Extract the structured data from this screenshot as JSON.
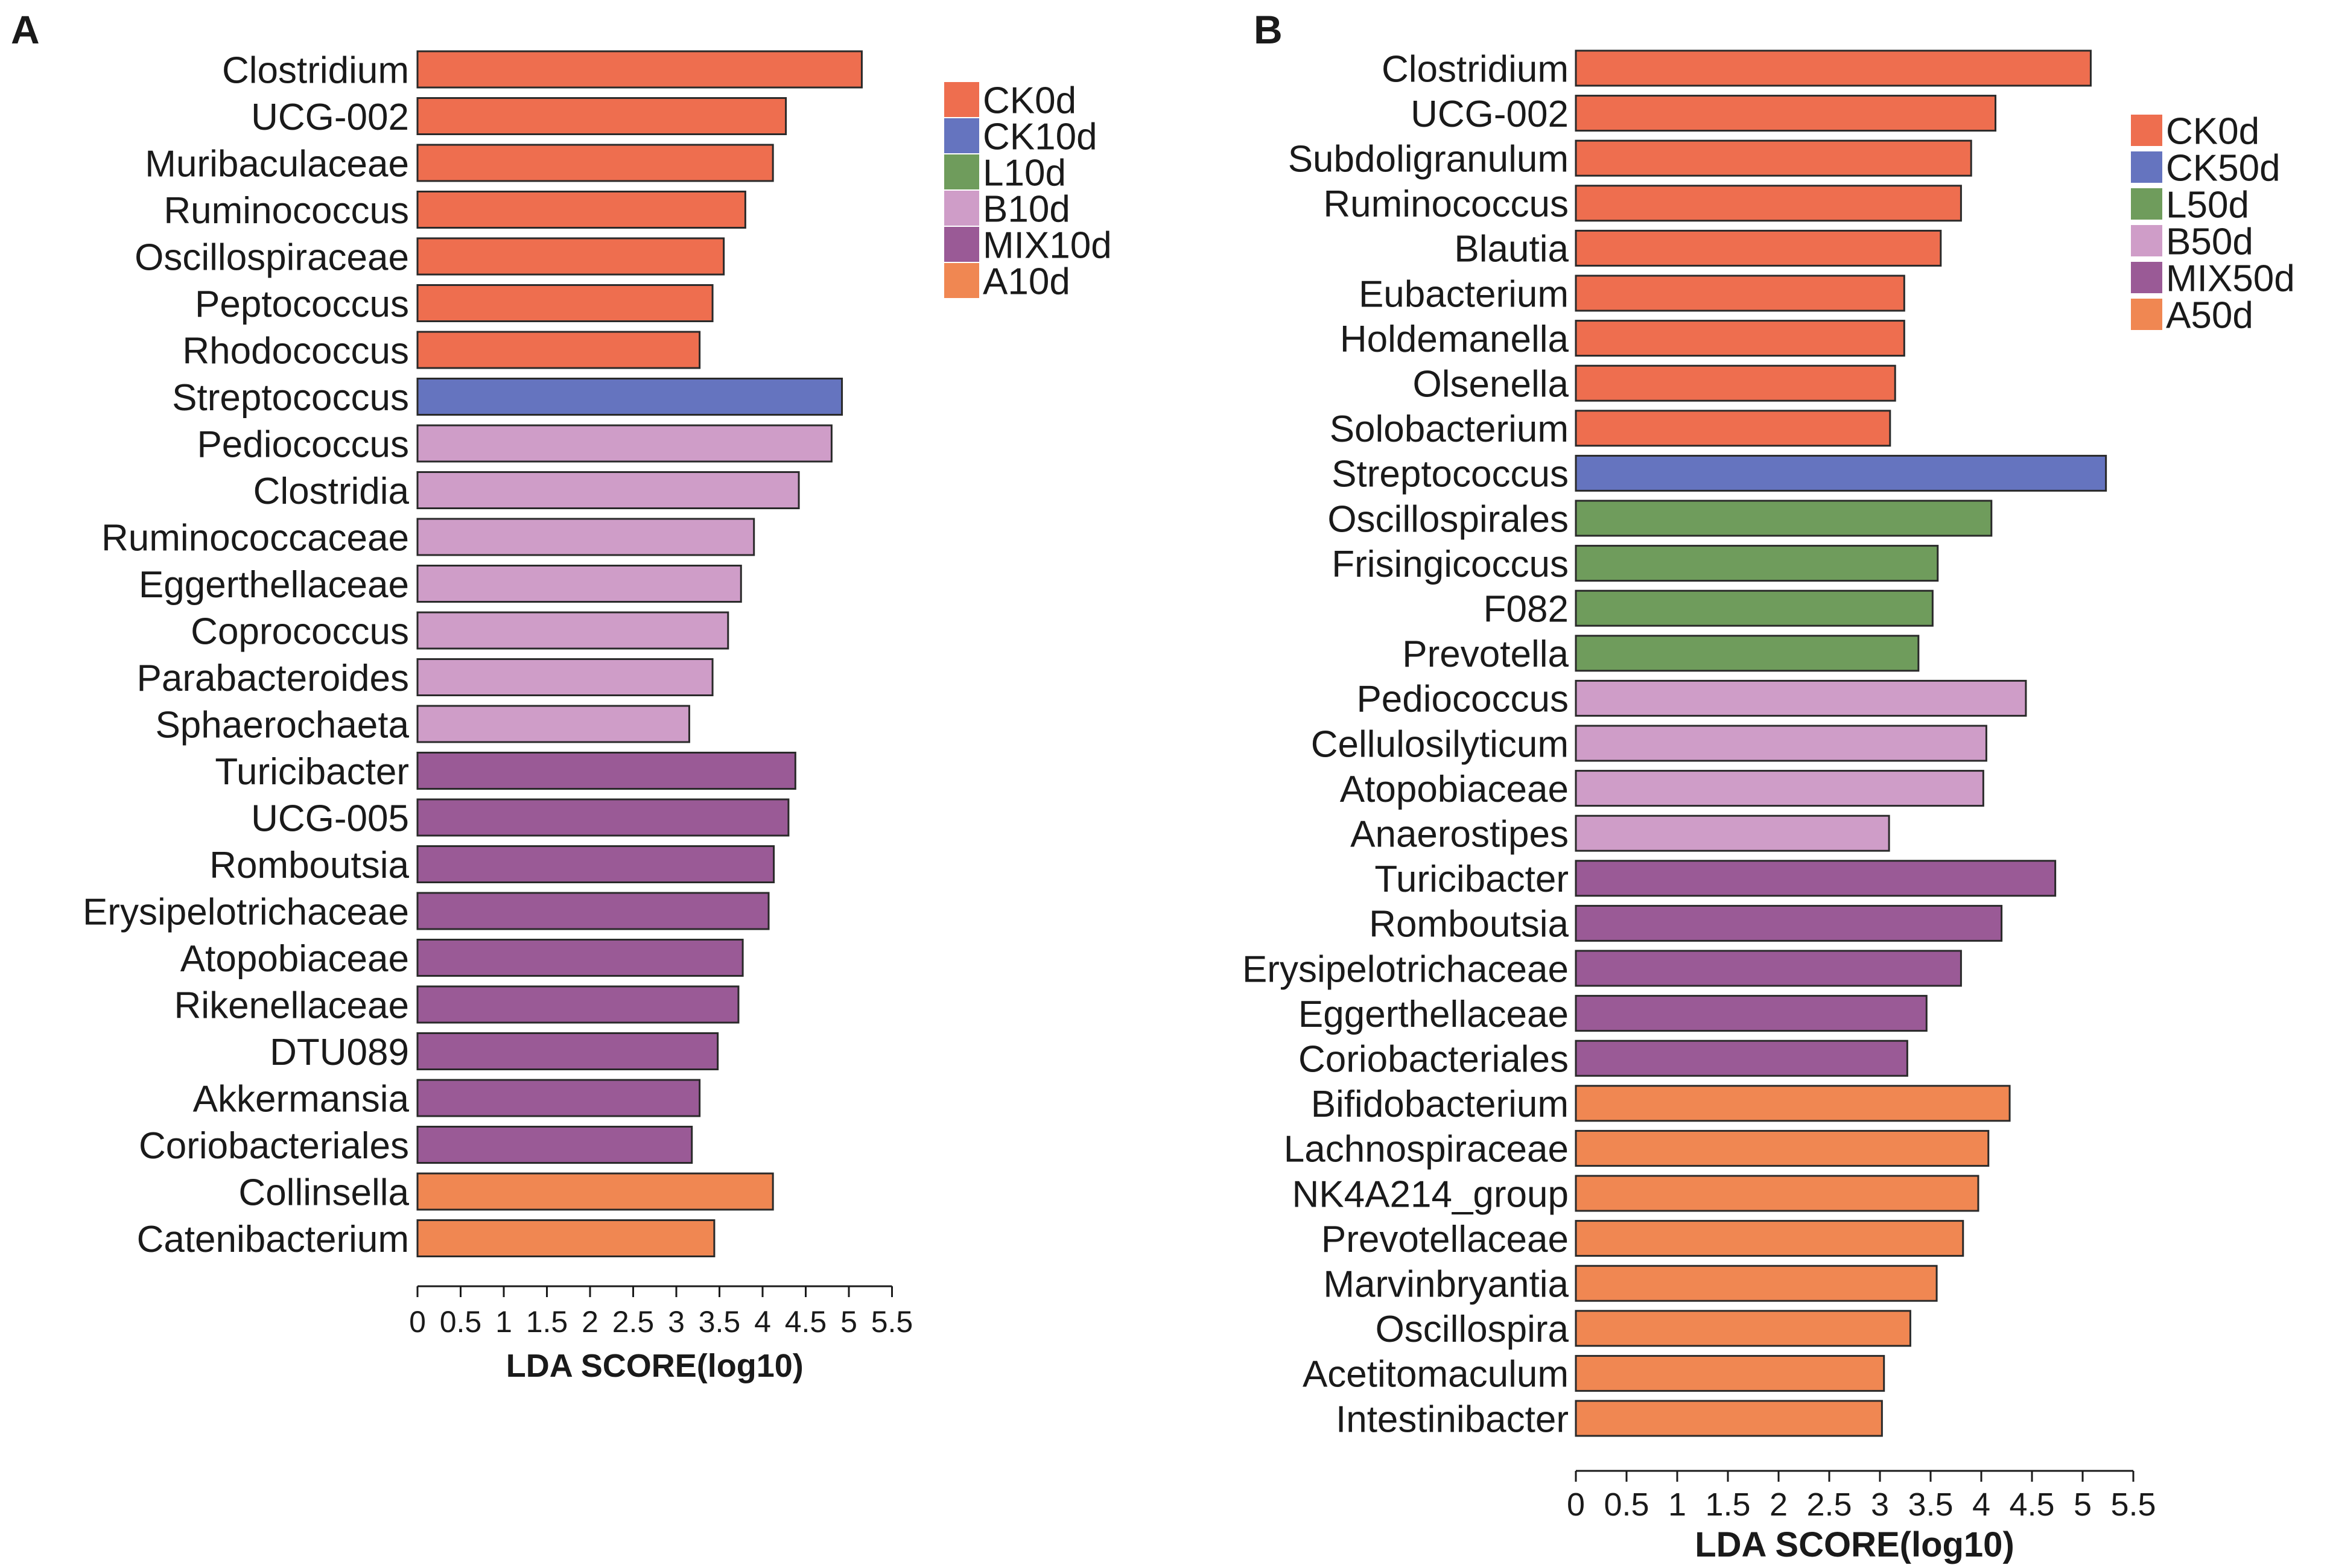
{
  "colors": {
    "CK": "#EE6E4F",
    "CKx": "#6574BF",
    "L": "#6F9C5C",
    "B": "#CF9DC8",
    "MIX": "#9A5A96",
    "A": "#F08752",
    "stroke": "#2a2a2a",
    "axis": "#1a1a1a"
  },
  "chart_data": [
    {
      "panel": "A",
      "type": "bar",
      "orientation": "horizontal",
      "xlabel": "LDA SCORE(log10)",
      "xlim": [
        0,
        5.5
      ],
      "xticks": [
        "0",
        "0.5",
        "1",
        "1.5",
        "2",
        "2.5",
        "3",
        "3.5",
        "4",
        "4.5",
        "5",
        "5.5"
      ],
      "legend_position": "top-right",
      "legend": [
        {
          "label": "CK0d",
          "color_key": "CK"
        },
        {
          "label": "CK10d",
          "color_key": "CKx"
        },
        {
          "label": "L10d",
          "color_key": "L"
        },
        {
          "label": "B10d",
          "color_key": "B"
        },
        {
          "label": "MIX10d",
          "color_key": "MIX"
        },
        {
          "label": "A10d",
          "color_key": "A"
        }
      ],
      "bars": [
        {
          "label": "Clostridium",
          "value": 5.15,
          "group": "CK"
        },
        {
          "label": "UCG-002",
          "value": 4.27,
          "group": "CK"
        },
        {
          "label": "Muribaculaceae",
          "value": 4.12,
          "group": "CK"
        },
        {
          "label": "Ruminococcus",
          "value": 3.8,
          "group": "CK"
        },
        {
          "label": "Oscillospiraceae",
          "value": 3.55,
          "group": "CK"
        },
        {
          "label": "Peptococcus",
          "value": 3.42,
          "group": "CK"
        },
        {
          "label": "Rhodococcus",
          "value": 3.27,
          "group": "CK"
        },
        {
          "label": "Streptococcus",
          "value": 4.92,
          "group": "CKx"
        },
        {
          "label": "Pediococcus",
          "value": 4.8,
          "group": "B"
        },
        {
          "label": "Clostridia",
          "value": 4.42,
          "group": "B"
        },
        {
          "label": "Ruminococcaceae",
          "value": 3.9,
          "group": "B"
        },
        {
          "label": "Eggerthellaceae",
          "value": 3.75,
          "group": "B"
        },
        {
          "label": "Coprococcus",
          "value": 3.6,
          "group": "B"
        },
        {
          "label": "Parabacteroides",
          "value": 3.42,
          "group": "B"
        },
        {
          "label": "Sphaerochaeta",
          "value": 3.15,
          "group": "B"
        },
        {
          "label": "Turicibacter",
          "value": 4.38,
          "group": "MIX"
        },
        {
          "label": "UCG-005",
          "value": 4.3,
          "group": "MIX"
        },
        {
          "label": "Romboutsia",
          "value": 4.13,
          "group": "MIX"
        },
        {
          "label": "Erysipelotrichaceae",
          "value": 4.07,
          "group": "MIX"
        },
        {
          "label": "Atopobiaceae",
          "value": 3.77,
          "group": "MIX"
        },
        {
          "label": "Rikenellaceae",
          "value": 3.72,
          "group": "MIX"
        },
        {
          "label": "DTU089",
          "value": 3.48,
          "group": "MIX"
        },
        {
          "label": "Akkermansia",
          "value": 3.27,
          "group": "MIX"
        },
        {
          "label": "Coriobacteriales",
          "value": 3.18,
          "group": "MIX"
        },
        {
          "label": "Collinsella",
          "value": 4.12,
          "group": "A"
        },
        {
          "label": "Catenibacterium",
          "value": 3.44,
          "group": "A"
        }
      ]
    },
    {
      "panel": "B",
      "type": "bar",
      "orientation": "horizontal",
      "xlabel": "LDA SCORE(log10)",
      "xlim": [
        0,
        5.5
      ],
      "xticks": [
        "0",
        "0.5",
        "1",
        "1.5",
        "2",
        "2.5",
        "3",
        "3.5",
        "4",
        "4.5",
        "5",
        "5.5"
      ],
      "legend_position": "top-right",
      "legend": [
        {
          "label": "CK0d",
          "color_key": "CK"
        },
        {
          "label": "CK50d",
          "color_key": "CKx"
        },
        {
          "label": "L50d",
          "color_key": "L"
        },
        {
          "label": "B50d",
          "color_key": "B"
        },
        {
          "label": "MIX50d",
          "color_key": "MIX"
        },
        {
          "label": "A50d",
          "color_key": "A"
        }
      ],
      "bars": [
        {
          "label": "Clostridium",
          "value": 5.08,
          "group": "CK"
        },
        {
          "label": "UCG-002",
          "value": 4.14,
          "group": "CK"
        },
        {
          "label": "Subdoligranulum",
          "value": 3.9,
          "group": "CK"
        },
        {
          "label": "Ruminococcus",
          "value": 3.8,
          "group": "CK"
        },
        {
          "label": "Blautia",
          "value": 3.6,
          "group": "CK"
        },
        {
          "label": "Eubacterium",
          "value": 3.24,
          "group": "CK"
        },
        {
          "label": "Holdemanella",
          "value": 3.24,
          "group": "CK"
        },
        {
          "label": "Olsenella",
          "value": 3.15,
          "group": "CK"
        },
        {
          "label": "Solobacterium",
          "value": 3.1,
          "group": "CK"
        },
        {
          "label": "Streptococcus",
          "value": 5.23,
          "group": "CKx"
        },
        {
          "label": "Oscillospirales",
          "value": 4.1,
          "group": "L"
        },
        {
          "label": "Frisingicoccus",
          "value": 3.57,
          "group": "L"
        },
        {
          "label": "F082",
          "value": 3.52,
          "group": "L"
        },
        {
          "label": "Prevotella",
          "value": 3.38,
          "group": "L"
        },
        {
          "label": "Pediococcus",
          "value": 4.44,
          "group": "B"
        },
        {
          "label": "Cellulosilyticum",
          "value": 4.05,
          "group": "B"
        },
        {
          "label": "Atopobiaceae",
          "value": 4.02,
          "group": "B"
        },
        {
          "label": "Anaerostipes",
          "value": 3.09,
          "group": "B"
        },
        {
          "label": "Turicibacter",
          "value": 4.73,
          "group": "MIX"
        },
        {
          "label": "Romboutsia",
          "value": 4.2,
          "group": "MIX"
        },
        {
          "label": "Erysipelotrichaceae",
          "value": 3.8,
          "group": "MIX"
        },
        {
          "label": "Eggerthellaceae",
          "value": 3.46,
          "group": "MIX"
        },
        {
          "label": "Coriobacteriales",
          "value": 3.27,
          "group": "MIX"
        },
        {
          "label": "Bifidobacterium",
          "value": 4.28,
          "group": "A"
        },
        {
          "label": "Lachnospiraceae",
          "value": 4.07,
          "group": "A"
        },
        {
          "label": "NK4A214_group",
          "value": 3.97,
          "group": "A"
        },
        {
          "label": "Prevotellaceae",
          "value": 3.82,
          "group": "A"
        },
        {
          "label": "Marvinbryantia",
          "value": 3.56,
          "group": "A"
        },
        {
          "label": "Oscillospira",
          "value": 3.3,
          "group": "A"
        },
        {
          "label": "Acetitomaculum",
          "value": 3.04,
          "group": "A"
        },
        {
          "label": "Intestinibacter",
          "value": 3.02,
          "group": "A"
        }
      ]
    }
  ]
}
